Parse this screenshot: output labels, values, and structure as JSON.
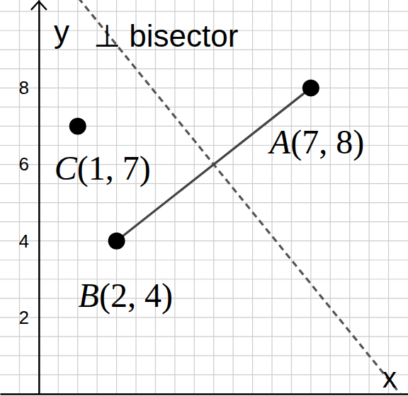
{
  "chart_data": {
    "type": "scatter",
    "title": "⊥ bisector",
    "x_label": "x",
    "y_label": "y",
    "xlim": [
      -1,
      9.5
    ],
    "ylim": [
      0,
      10.3
    ],
    "yticks": [
      2,
      4,
      6,
      8
    ],
    "tick_labels": "y",
    "grid": true,
    "xgrid": [
      -0.5,
      0,
      0.5,
      1,
      1.5,
      2,
      2.5,
      3,
      3.5,
      4,
      4.5,
      5,
      5.5,
      6,
      6.5,
      7,
      7.5,
      8,
      8.5,
      9
    ],
    "ygrid": [
      0.5,
      1,
      1.5,
      2,
      2.5,
      3,
      3.5,
      4,
      4.5,
      5,
      5.5,
      6,
      6.5,
      7,
      7.5,
      8,
      8.5,
      9,
      9.5,
      10
    ],
    "points": {
      "x": [
        7,
        2,
        1
      ],
      "y": [
        8,
        4,
        7
      ],
      "labels": [
        "A(7, 8)",
        "B(2, 4)",
        "C(1, 7)"
      ],
      "color": "#000000",
      "marker": "circle"
    },
    "segment": {
      "x": [
        7,
        2
      ],
      "y": [
        8,
        4
      ],
      "color": "#444444",
      "line_style": "solid"
    },
    "bisector": {
      "x": [
        0.5,
        9.3
      ],
      "y": [
        11,
        0
      ],
      "color": "#555555",
      "line_style": "dashed"
    }
  }
}
